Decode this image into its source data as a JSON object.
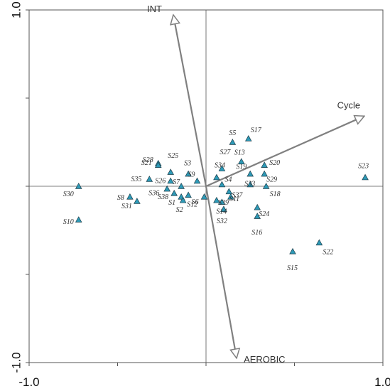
{
  "chart_data": {
    "type": "scatter",
    "title": "",
    "xlabel": "",
    "ylabel": "",
    "xlim": [
      -1.0,
      1.0
    ],
    "ylim": [
      -1.0,
      1.0
    ],
    "x_ticks": [
      -1.0,
      -0.5,
      0.0,
      0.5,
      1.0
    ],
    "x_tick_labels": [
      "-1.0",
      "",
      "",
      "",
      "1.0"
    ],
    "y_ticks": [
      -1.0,
      -0.5,
      0.0,
      0.5,
      1.0
    ],
    "y_tick_labels": [
      "-1.0",
      "",
      "",
      "",
      "1.0"
    ],
    "grid": false,
    "zero_lines": true,
    "marker_color": "#2e9ab7",
    "vector_color": "#808080",
    "vectors": [
      {
        "name": "INT",
        "x": -0.185,
        "y": 0.972
      },
      {
        "name": "Cycle",
        "x": 0.895,
        "y": 0.398
      },
      {
        "name": "AEROBIC",
        "x": 0.173,
        "y": -0.975
      }
    ],
    "points": [
      {
        "label": "S30",
        "x": -0.72,
        "y": 0.0
      },
      {
        "label": "S10",
        "x": -0.72,
        "y": -0.19
      },
      {
        "label": "S8",
        "x": -0.43,
        "y": -0.06
      },
      {
        "label": "S31",
        "x": -0.39,
        "y": -0.085
      },
      {
        "label": "S28",
        "x": -0.27,
        "y": 0.13
      },
      {
        "label": "S21",
        "x": -0.27,
        "y": 0.12
      },
      {
        "label": "S25",
        "x": -0.2,
        "y": 0.08
      },
      {
        "label": "S35",
        "x": -0.32,
        "y": 0.04
      },
      {
        "label": "S26",
        "x": -0.2,
        "y": 0.03
      },
      {
        "label": "S36",
        "x": -0.22,
        "y": -0.015
      },
      {
        "label": "S38",
        "x": -0.18,
        "y": -0.04
      },
      {
        "label": "S7",
        "x": -0.14,
        "y": 0.0
      },
      {
        "label": "S1",
        "x": -0.14,
        "y": -0.06
      },
      {
        "label": "S2",
        "x": -0.13,
        "y": -0.08
      },
      {
        "label": "S3",
        "x": -0.1,
        "y": 0.07
      },
      {
        "label": "S12",
        "x": -0.1,
        "y": -0.05
      },
      {
        "label": "S9",
        "x": -0.05,
        "y": 0.03
      },
      {
        "label": "S6",
        "x": -0.01,
        "y": -0.06
      },
      {
        "label": "S27",
        "x": 0.09,
        "y": 0.1
      },
      {
        "label": "S34",
        "x": 0.06,
        "y": 0.05
      },
      {
        "label": "S4",
        "x": 0.09,
        "y": 0.01
      },
      {
        "label": "S37",
        "x": 0.13,
        "y": -0.03
      },
      {
        "label": "S11",
        "x": 0.14,
        "y": -0.06
      },
      {
        "label": "S39",
        "x": 0.06,
        "y": -0.08
      },
      {
        "label": "S14",
        "x": 0.09,
        "y": -0.09
      },
      {
        "label": "S32",
        "x": 0.1,
        "y": -0.13
      },
      {
        "label": "S5",
        "x": 0.15,
        "y": 0.25
      },
      {
        "label": "S17",
        "x": 0.24,
        "y": 0.27
      },
      {
        "label": "S13",
        "x": 0.2,
        "y": 0.14
      },
      {
        "label": "S19",
        "x": 0.25,
        "y": 0.07
      },
      {
        "label": "S33",
        "x": 0.25,
        "y": 0.01
      },
      {
        "label": "S20",
        "x": 0.33,
        "y": 0.12
      },
      {
        "label": "S29",
        "x": 0.33,
        "y": 0.07
      },
      {
        "label": "S18",
        "x": 0.34,
        "y": 0.0
      },
      {
        "label": "S24",
        "x": 0.29,
        "y": -0.12
      },
      {
        "label": "S16",
        "x": 0.29,
        "y": -0.17
      },
      {
        "label": "S15",
        "x": 0.49,
        "y": -0.37
      },
      {
        "label": "S22",
        "x": 0.64,
        "y": -0.32
      },
      {
        "label": "S23",
        "x": 0.9,
        "y": 0.05
      }
    ]
  }
}
